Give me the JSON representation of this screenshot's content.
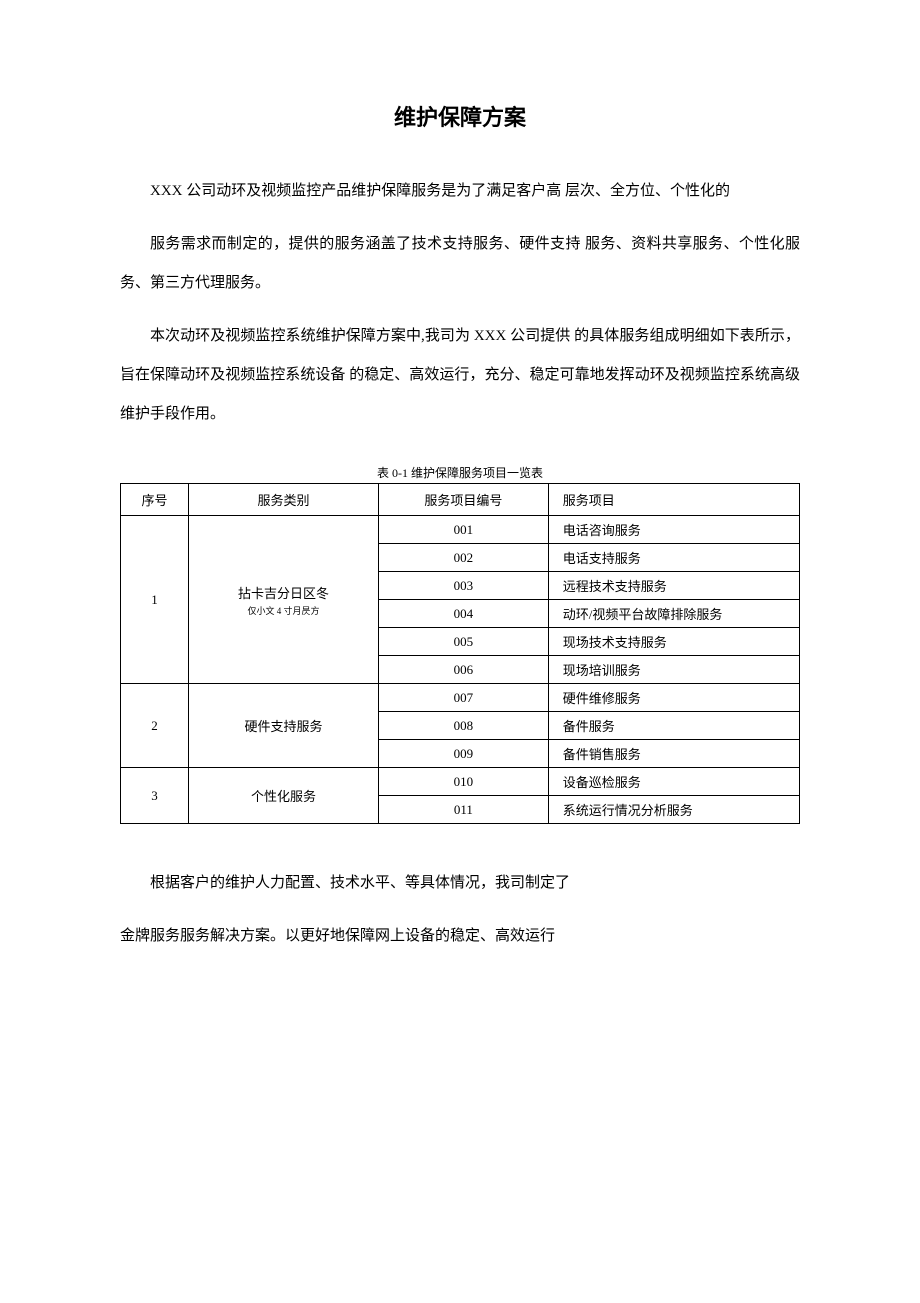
{
  "title": "维护保障方案",
  "para1": "XXX 公司动环及视频监控产品维护保障服务是为了满足客户高 层次、全方位、个性化的",
  "para2": "服务需求而制定的，提供的服务涵盖了技术支持服务、硬件支持 服务、资料共享服务、个性化服务、第三方代理服务。",
  "para3": "本次动环及视频监控系统维护保障方案中,我司为 XXX 公司提供 的具体服务组成明细如下表所示，旨在保障动环及视频监控系统设备 的稳定、高效运行，充分、稳定可靠地发挥动环及视频监控系统高级 维护手段作用。",
  "tableCaption": "表 0-1 维护保障服务项目一览表",
  "headers": {
    "seq": "序号",
    "category": "服务类别",
    "code": "服务项目编号",
    "item": "服务项目"
  },
  "groups": [
    {
      "seq": "1",
      "category": "拈卡吉分日区冬",
      "categorySub": "仅小文 4 寸月昃方",
      "rows": [
        {
          "code": "001",
          "item": "电话咨询服务"
        },
        {
          "code": "002",
          "item": "电话支持服务"
        },
        {
          "code": "003",
          "item": "远程技术支持服务"
        },
        {
          "code": "004",
          "item": "动环/视频平台故障排除服务"
        },
        {
          "code": "005",
          "item": "现场技术支持服务"
        },
        {
          "code": "006",
          "item": "现场培训服务"
        }
      ]
    },
    {
      "seq": "2",
      "category": "硬件支持服务",
      "rows": [
        {
          "code": "007",
          "item": "硬件维修服务"
        },
        {
          "code": "008",
          "item": "备件服务"
        },
        {
          "code": "009",
          "item": "备件销售服务"
        }
      ]
    },
    {
      "seq": "3",
      "category": "个性化服务",
      "rows": [
        {
          "code": "010",
          "item": "设备巡检服务"
        },
        {
          "code": "011",
          "item": "系统运行情况分析服务"
        }
      ]
    }
  ],
  "para4": "根据客户的维护人力配置、技术水平、等具体情况，我司制定了",
  "para5": "金牌服务服务解决方案。以更好地保障网上设备的稳定、高效运行"
}
